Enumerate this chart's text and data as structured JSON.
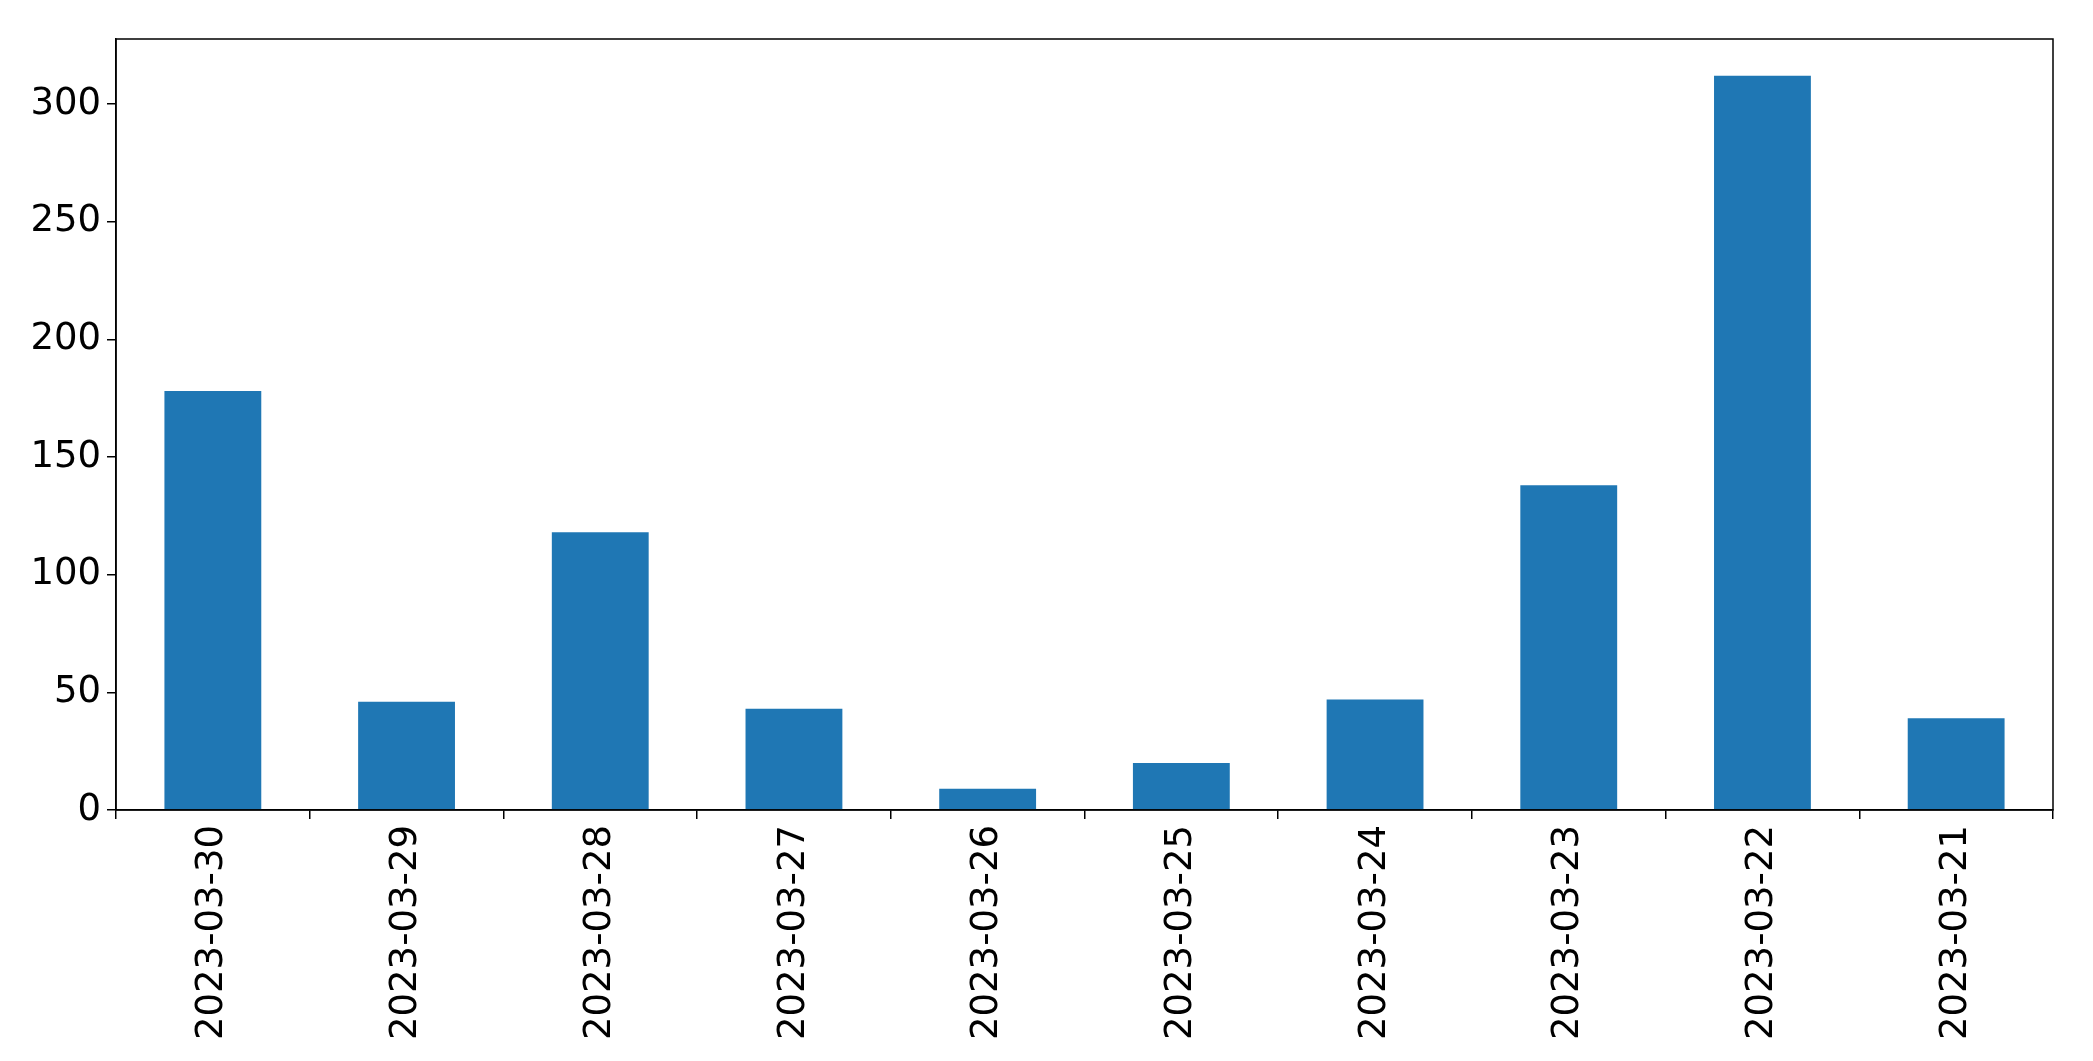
{
  "chart_data": {
    "type": "bar",
    "categories": [
      "2023-03-30",
      "2023-03-29",
      "2023-03-28",
      "2023-03-27",
      "2023-03-26",
      "2023-03-25",
      "2023-03-24",
      "2023-03-23",
      "2023-03-22",
      "2023-03-21"
    ],
    "values": [
      178,
      46,
      118,
      43,
      9,
      20,
      47,
      138,
      312,
      39
    ],
    "color": "#1f77b4",
    "ylim": [
      0,
      327.6
    ],
    "yticks": [
      0,
      50,
      100,
      150,
      200,
      250,
      300
    ],
    "grid": false
  }
}
